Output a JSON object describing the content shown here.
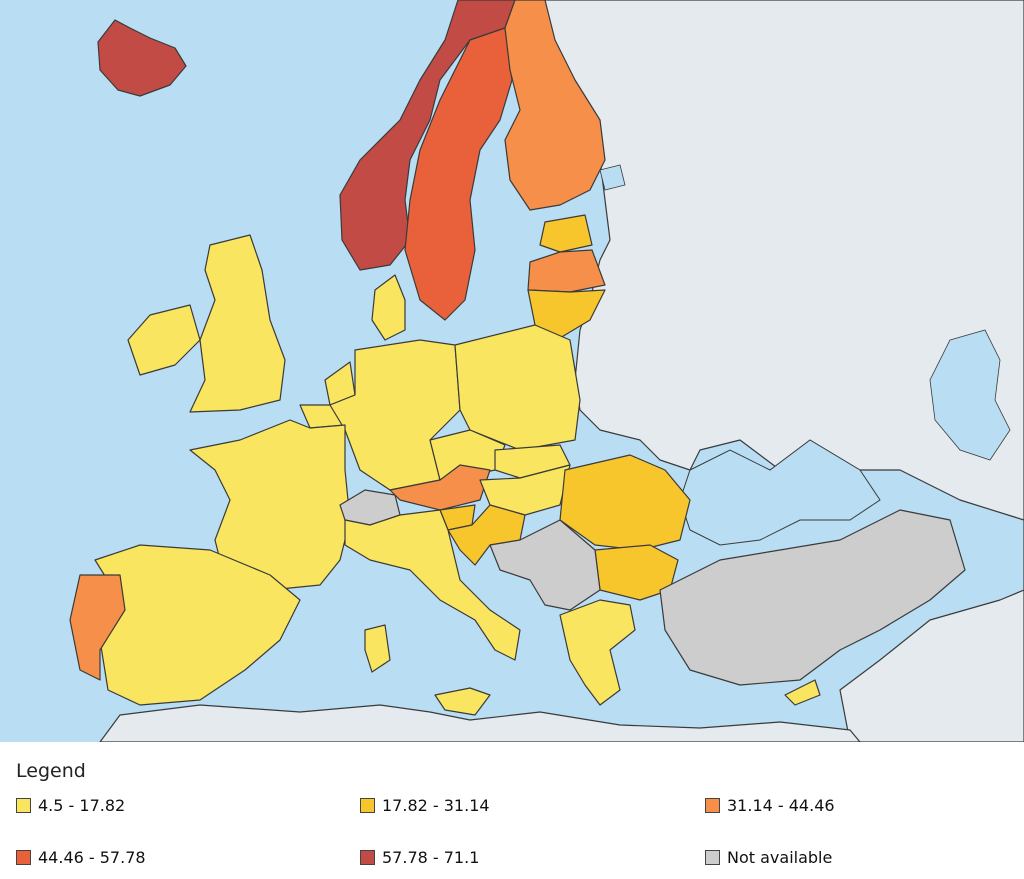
{
  "colors": {
    "sea": "#b9ddf2",
    "non_eu_land": "#e5eaef",
    "class_1": "#f9e560",
    "class_2": "#f7c62c",
    "class_3": "#f58f4a",
    "class_4": "#e8613a",
    "class_5": "#c24b46",
    "not_available": "#cdcdcd"
  },
  "legend": {
    "title": "Legend",
    "items": [
      {
        "label": "4.5 - 17.82",
        "color": "#f9e560"
      },
      {
        "label": "17.82 - 31.14",
        "color": "#f7c62c"
      },
      {
        "label": "31.14 - 44.46",
        "color": "#f58f4a"
      },
      {
        "label": "44.46 - 57.78",
        "color": "#e8613a"
      },
      {
        "label": "57.78 - 71.1",
        "color": "#c24b46"
      },
      {
        "label": "Not available",
        "color": "#cdcdcd"
      }
    ]
  }
}
